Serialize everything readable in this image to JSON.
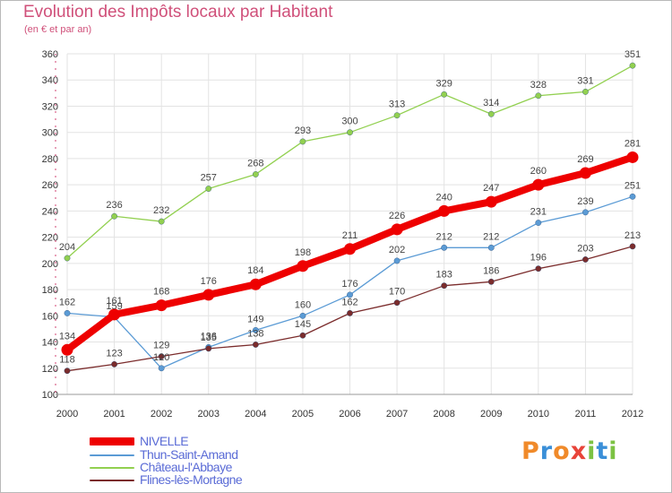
{
  "header": {
    "title": "Evolution des Impôts locaux par Habitant",
    "subtitle": "(en € et par an)"
  },
  "logo": {
    "text": "Proxiti",
    "letters": [
      "P",
      "r",
      "o",
      "x",
      "i",
      "t",
      "i"
    ]
  },
  "colors": {
    "title": "#d0507a",
    "axis_text": "#333333",
    "grid": "#e3e3e3",
    "nivelle": "#ee0000",
    "thun": "#5b9bd5",
    "chateau": "#92d050",
    "flines": "#7b2c2c"
  },
  "chart_data": {
    "type": "line",
    "x": [
      "2000",
      "2001",
      "2002",
      "2003",
      "2004",
      "2005",
      "2006",
      "2007",
      "2008",
      "2009",
      "2010",
      "2011",
      "2012"
    ],
    "ylim": [
      100,
      360
    ],
    "yticks": [
      100,
      120,
      140,
      160,
      180,
      200,
      220,
      240,
      260,
      280,
      300,
      320,
      340,
      360
    ],
    "grid": true,
    "legend": "bottom-left",
    "series": [
      {
        "name": "NIVELLE",
        "color": "#ee0000",
        "values": [
          134,
          161,
          168,
          176,
          184,
          198,
          211,
          226,
          240,
          247,
          260,
          269,
          281
        ]
      },
      {
        "name": "Thun-Saint-Amand",
        "color": "#5b9bd5",
        "values": [
          162,
          159,
          120,
          136,
          149,
          160,
          176,
          202,
          212,
          212,
          231,
          239,
          251
        ]
      },
      {
        "name": "Château-l'Abbaye",
        "color": "#92d050",
        "values": [
          204,
          236,
          232,
          257,
          268,
          293,
          300,
          313,
          329,
          314,
          328,
          331,
          351
        ]
      },
      {
        "name": "Flines-lès-Mortagne",
        "color": "#7b2c2c",
        "values": [
          118,
          123,
          129,
          135,
          138,
          145,
          162,
          170,
          183,
          186,
          196,
          203,
          213
        ]
      }
    ]
  }
}
